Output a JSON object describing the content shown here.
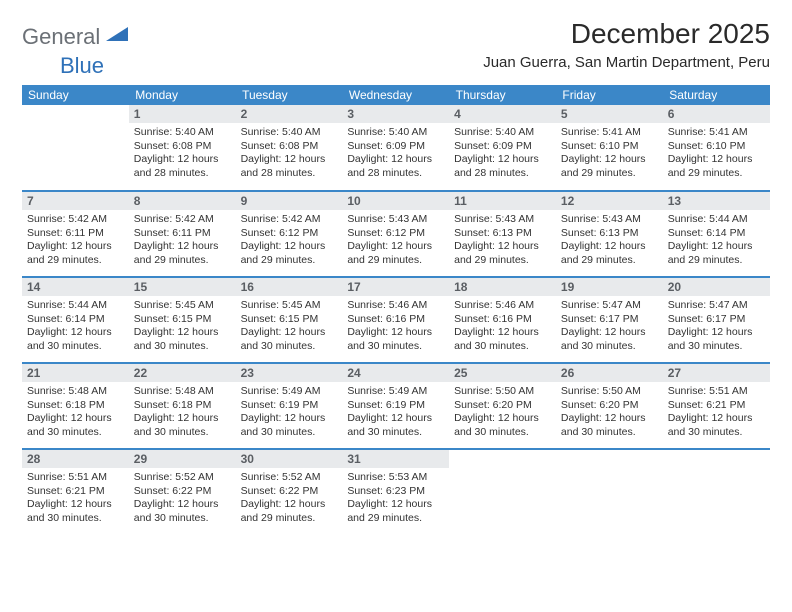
{
  "logo": {
    "part1": "General",
    "part2": "Blue"
  },
  "title": "December 2025",
  "location": "Juan Guerra, San Martin Department, Peru",
  "colors": {
    "header_bg": "#3b87c8",
    "header_text": "#ffffff",
    "daynum_bg": "#e8eaec",
    "daynum_text": "#5a5e63",
    "border": "#3b87c8",
    "logo_gray": "#6b7076",
    "logo_blue": "#2f71b8",
    "body_text": "#333333"
  },
  "day_headers": [
    "Sunday",
    "Monday",
    "Tuesday",
    "Wednesday",
    "Thursday",
    "Friday",
    "Saturday"
  ],
  "weeks": [
    [
      null,
      {
        "n": "1",
        "sr": "5:40 AM",
        "ss": "6:08 PM",
        "dl": "12 hours and 28 minutes."
      },
      {
        "n": "2",
        "sr": "5:40 AM",
        "ss": "6:08 PM",
        "dl": "12 hours and 28 minutes."
      },
      {
        "n": "3",
        "sr": "5:40 AM",
        "ss": "6:09 PM",
        "dl": "12 hours and 28 minutes."
      },
      {
        "n": "4",
        "sr": "5:40 AM",
        "ss": "6:09 PM",
        "dl": "12 hours and 28 minutes."
      },
      {
        "n": "5",
        "sr": "5:41 AM",
        "ss": "6:10 PM",
        "dl": "12 hours and 29 minutes."
      },
      {
        "n": "6",
        "sr": "5:41 AM",
        "ss": "6:10 PM",
        "dl": "12 hours and 29 minutes."
      }
    ],
    [
      {
        "n": "7",
        "sr": "5:42 AM",
        "ss": "6:11 PM",
        "dl": "12 hours and 29 minutes."
      },
      {
        "n": "8",
        "sr": "5:42 AM",
        "ss": "6:11 PM",
        "dl": "12 hours and 29 minutes."
      },
      {
        "n": "9",
        "sr": "5:42 AM",
        "ss": "6:12 PM",
        "dl": "12 hours and 29 minutes."
      },
      {
        "n": "10",
        "sr": "5:43 AM",
        "ss": "6:12 PM",
        "dl": "12 hours and 29 minutes."
      },
      {
        "n": "11",
        "sr": "5:43 AM",
        "ss": "6:13 PM",
        "dl": "12 hours and 29 minutes."
      },
      {
        "n": "12",
        "sr": "5:43 AM",
        "ss": "6:13 PM",
        "dl": "12 hours and 29 minutes."
      },
      {
        "n": "13",
        "sr": "5:44 AM",
        "ss": "6:14 PM",
        "dl": "12 hours and 29 minutes."
      }
    ],
    [
      {
        "n": "14",
        "sr": "5:44 AM",
        "ss": "6:14 PM",
        "dl": "12 hours and 30 minutes."
      },
      {
        "n": "15",
        "sr": "5:45 AM",
        "ss": "6:15 PM",
        "dl": "12 hours and 30 minutes."
      },
      {
        "n": "16",
        "sr": "5:45 AM",
        "ss": "6:15 PM",
        "dl": "12 hours and 30 minutes."
      },
      {
        "n": "17",
        "sr": "5:46 AM",
        "ss": "6:16 PM",
        "dl": "12 hours and 30 minutes."
      },
      {
        "n": "18",
        "sr": "5:46 AM",
        "ss": "6:16 PM",
        "dl": "12 hours and 30 minutes."
      },
      {
        "n": "19",
        "sr": "5:47 AM",
        "ss": "6:17 PM",
        "dl": "12 hours and 30 minutes."
      },
      {
        "n": "20",
        "sr": "5:47 AM",
        "ss": "6:17 PM",
        "dl": "12 hours and 30 minutes."
      }
    ],
    [
      {
        "n": "21",
        "sr": "5:48 AM",
        "ss": "6:18 PM",
        "dl": "12 hours and 30 minutes."
      },
      {
        "n": "22",
        "sr": "5:48 AM",
        "ss": "6:18 PM",
        "dl": "12 hours and 30 minutes."
      },
      {
        "n": "23",
        "sr": "5:49 AM",
        "ss": "6:19 PM",
        "dl": "12 hours and 30 minutes."
      },
      {
        "n": "24",
        "sr": "5:49 AM",
        "ss": "6:19 PM",
        "dl": "12 hours and 30 minutes."
      },
      {
        "n": "25",
        "sr": "5:50 AM",
        "ss": "6:20 PM",
        "dl": "12 hours and 30 minutes."
      },
      {
        "n": "26",
        "sr": "5:50 AM",
        "ss": "6:20 PM",
        "dl": "12 hours and 30 minutes."
      },
      {
        "n": "27",
        "sr": "5:51 AM",
        "ss": "6:21 PM",
        "dl": "12 hours and 30 minutes."
      }
    ],
    [
      {
        "n": "28",
        "sr": "5:51 AM",
        "ss": "6:21 PM",
        "dl": "12 hours and 30 minutes."
      },
      {
        "n": "29",
        "sr": "5:52 AM",
        "ss": "6:22 PM",
        "dl": "12 hours and 30 minutes."
      },
      {
        "n": "30",
        "sr": "5:52 AM",
        "ss": "6:22 PM",
        "dl": "12 hours and 29 minutes."
      },
      {
        "n": "31",
        "sr": "5:53 AM",
        "ss": "6:23 PM",
        "dl": "12 hours and 29 minutes."
      },
      null,
      null,
      null
    ]
  ],
  "labels": {
    "sunrise": "Sunrise:",
    "sunset": "Sunset:",
    "daylight": "Daylight:"
  }
}
